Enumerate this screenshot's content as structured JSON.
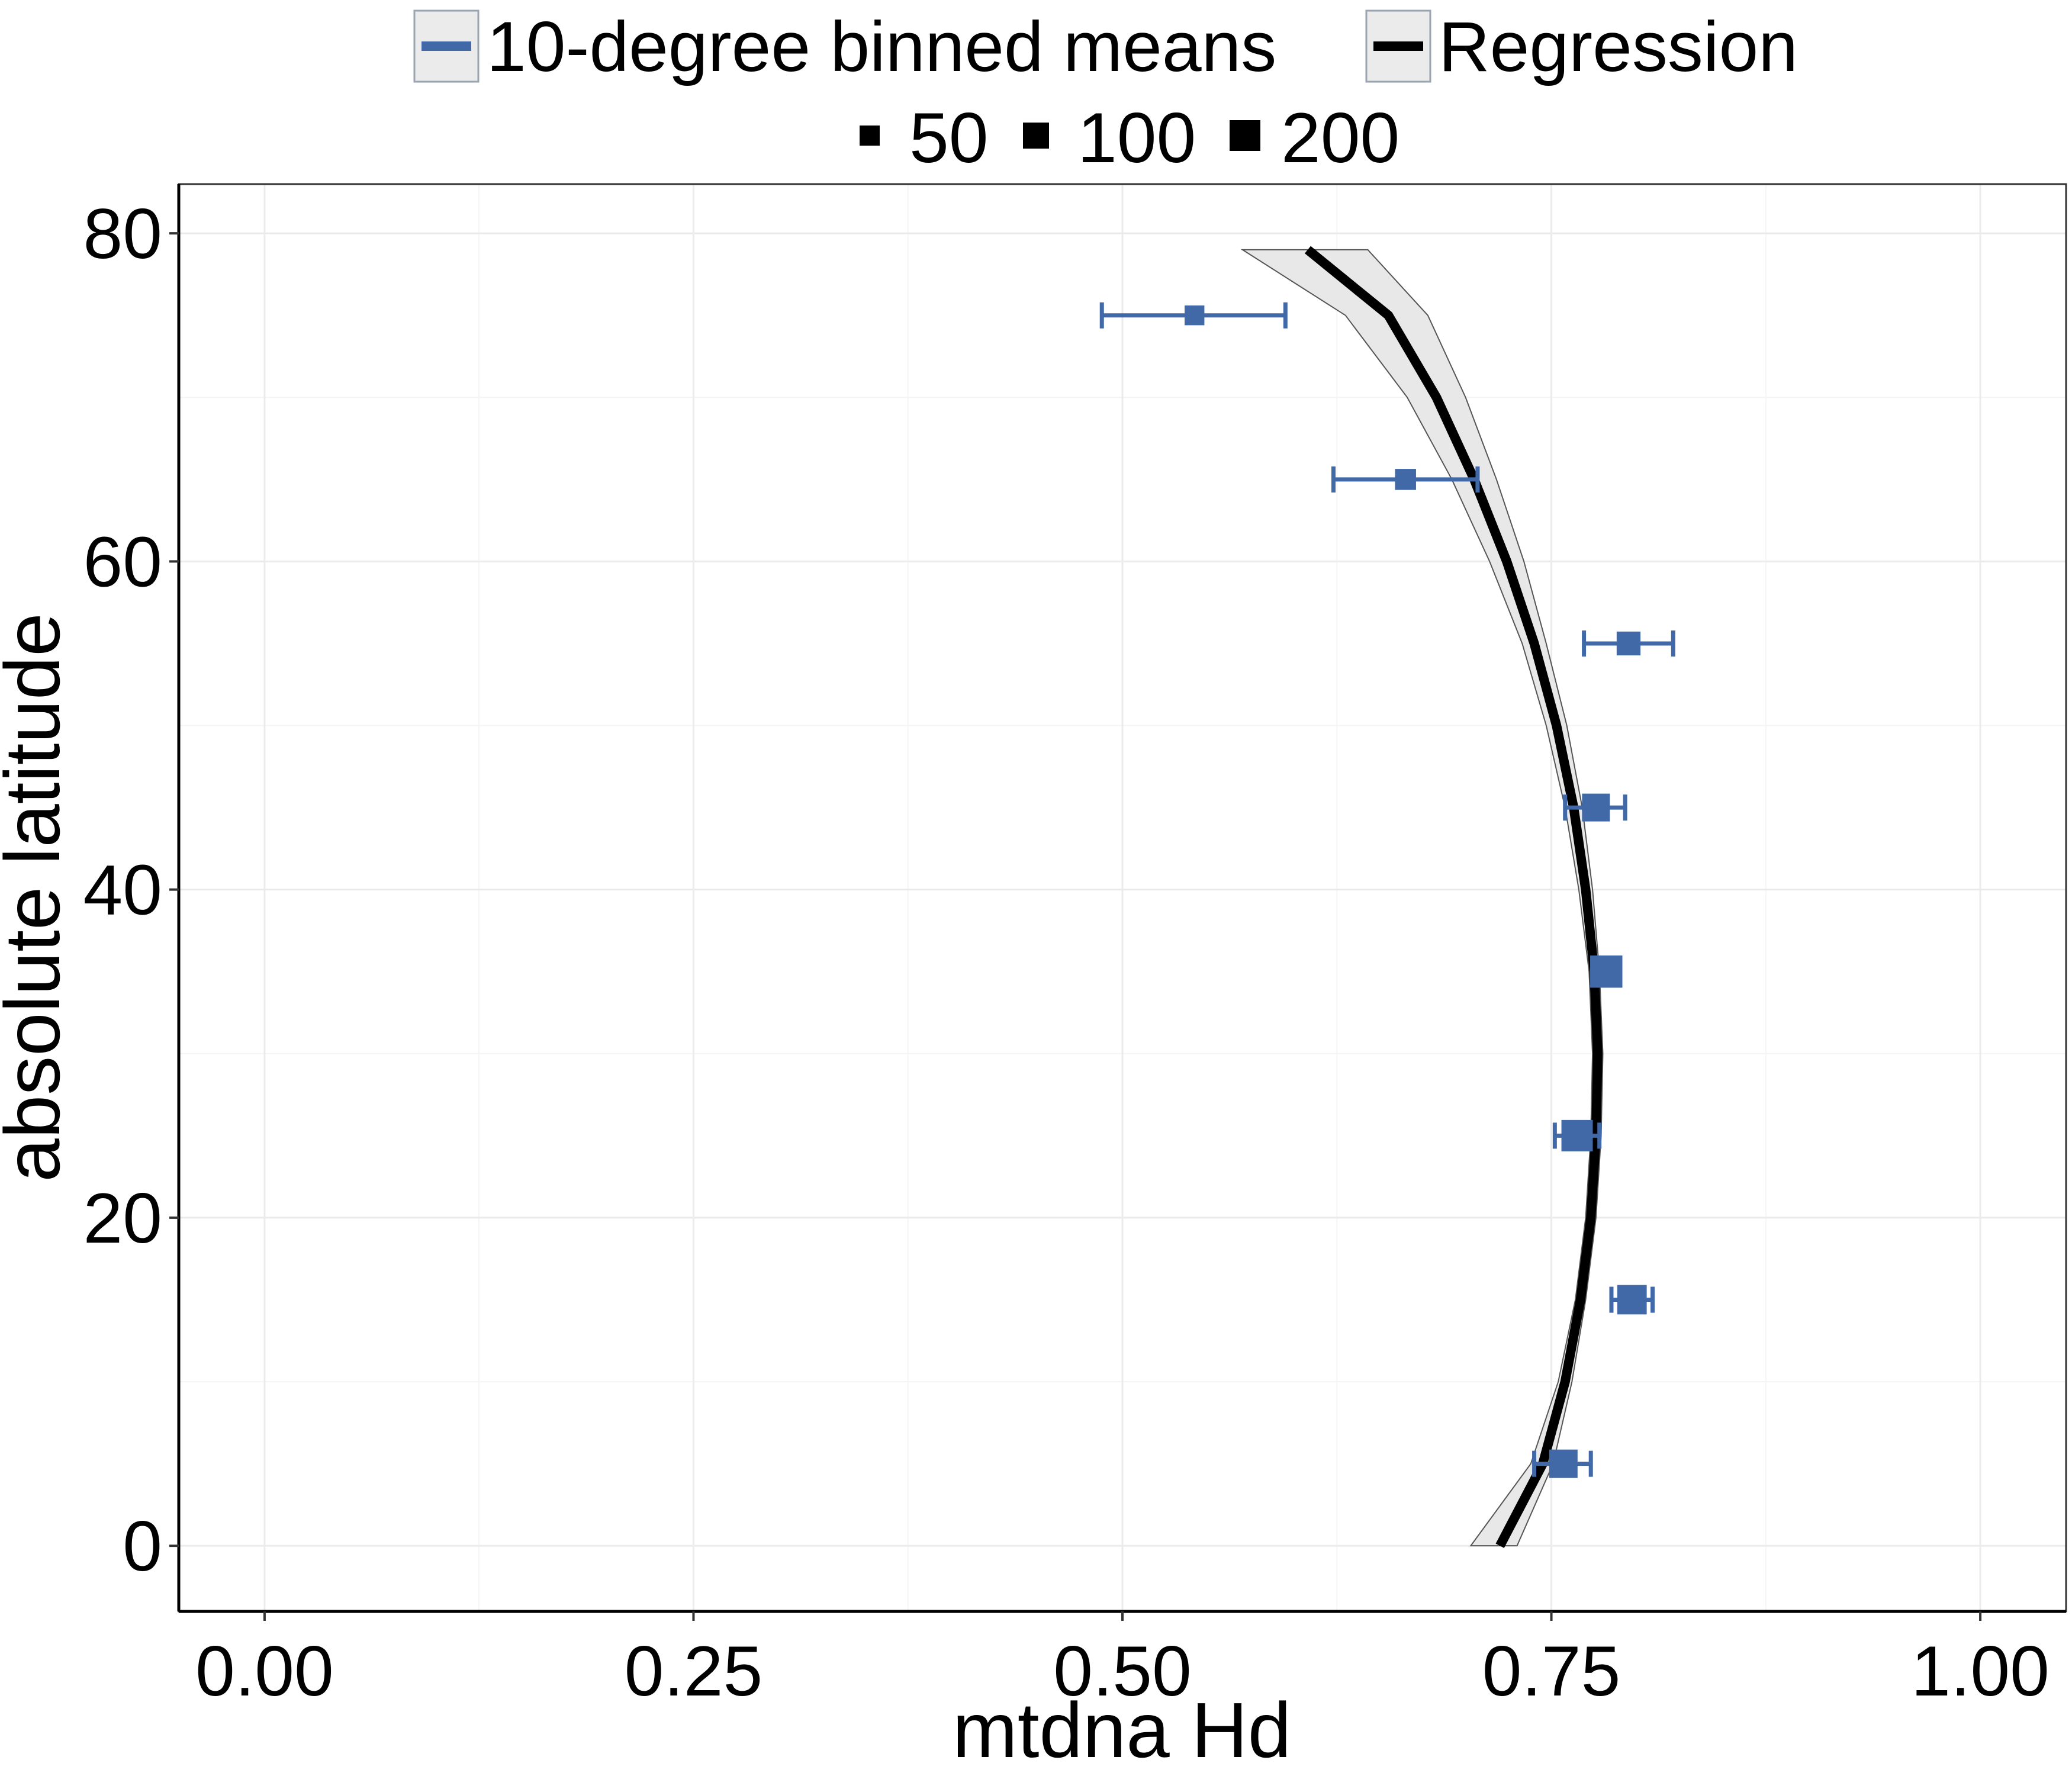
{
  "chart_data": {
    "type": "scatter",
    "xlabel": "mtdna Hd",
    "ylabel": "absolute latitude",
    "xlim": [
      -0.05,
      1.05
    ],
    "ylim": [
      -4,
      83
    ],
    "x_ticks": [
      {
        "value": 0.0,
        "label": "0.00"
      },
      {
        "value": 0.25,
        "label": "0.25"
      },
      {
        "value": 0.5,
        "label": "0.50"
      },
      {
        "value": 0.75,
        "label": "0.75"
      },
      {
        "value": 1.0,
        "label": "1.00"
      }
    ],
    "y_ticks": [
      {
        "value": 0,
        "label": "0"
      },
      {
        "value": 20,
        "label": "20"
      },
      {
        "value": 40,
        "label": "40"
      },
      {
        "value": 60,
        "label": "60"
      },
      {
        "value": 80,
        "label": "80"
      }
    ],
    "grid": true,
    "legend": {
      "placement": "top",
      "series_items": [
        {
          "label": "10-degree binned means",
          "color": "#4169a8"
        },
        {
          "label": "Regression",
          "color": "#000000"
        }
      ],
      "size_items": [
        {
          "label": "50",
          "size": 50
        },
        {
          "label": "100",
          "size": 100
        },
        {
          "label": "200",
          "size": 200
        }
      ]
    },
    "series": [
      {
        "name": "10-degree binned means",
        "color": "#4169a8",
        "points": [
          {
            "y": 5,
            "x": 0.757,
            "xmin": 0.74,
            "xmax": 0.773,
            "n": 130
          },
          {
            "y": 15,
            "x": 0.797,
            "xmin": 0.785,
            "xmax": 0.809,
            "n": 150
          },
          {
            "y": 25,
            "x": 0.765,
            "xmin": 0.752,
            "xmax": 0.778,
            "n": 190
          },
          {
            "y": 35,
            "x": 0.782,
            "xmin": 0.775,
            "xmax": 0.789,
            "n": 210
          },
          {
            "y": 45,
            "x": 0.776,
            "xmin": 0.758,
            "xmax": 0.793,
            "n": 120
          },
          {
            "y": 55,
            "x": 0.795,
            "xmin": 0.769,
            "xmax": 0.821,
            "n": 60
          },
          {
            "y": 65,
            "x": 0.665,
            "xmin": 0.623,
            "xmax": 0.707,
            "n": 30
          },
          {
            "y": 75,
            "x": 0.542,
            "xmin": 0.488,
            "xmax": 0.595,
            "n": 20
          }
        ]
      },
      {
        "name": "Regression",
        "color": "#000000",
        "line": [
          {
            "y": 0,
            "x": 0.72
          },
          {
            "y": 5,
            "x": 0.745
          },
          {
            "y": 10,
            "x": 0.758
          },
          {
            "y": 15,
            "x": 0.767
          },
          {
            "y": 20,
            "x": 0.773
          },
          {
            "y": 25,
            "x": 0.776
          },
          {
            "y": 30,
            "x": 0.777
          },
          {
            "y": 35,
            "x": 0.775
          },
          {
            "y": 40,
            "x": 0.77
          },
          {
            "y": 45,
            "x": 0.763
          },
          {
            "y": 50,
            "x": 0.753
          },
          {
            "y": 55,
            "x": 0.74
          },
          {
            "y": 60,
            "x": 0.724
          },
          {
            "y": 65,
            "x": 0.705
          },
          {
            "y": 70,
            "x": 0.683
          },
          {
            "y": 75,
            "x": 0.655
          },
          {
            "y": 79,
            "x": 0.608
          }
        ],
        "ribbon": [
          {
            "y": 0,
            "lo": 0.703,
            "hi": 0.73
          },
          {
            "y": 5,
            "lo": 0.738,
            "hi": 0.751
          },
          {
            "y": 10,
            "lo": 0.754,
            "hi": 0.762
          },
          {
            "y": 15,
            "lo": 0.764,
            "hi": 0.77
          },
          {
            "y": 20,
            "lo": 0.77,
            "hi": 0.776
          },
          {
            "y": 25,
            "lo": 0.773,
            "hi": 0.779
          },
          {
            "y": 30,
            "lo": 0.774,
            "hi": 0.78
          },
          {
            "y": 35,
            "lo": 0.772,
            "hi": 0.778
          },
          {
            "y": 40,
            "lo": 0.766,
            "hi": 0.774
          },
          {
            "y": 45,
            "lo": 0.758,
            "hi": 0.768
          },
          {
            "y": 50,
            "lo": 0.747,
            "hi": 0.759
          },
          {
            "y": 55,
            "lo": 0.733,
            "hi": 0.747
          },
          {
            "y": 60,
            "lo": 0.714,
            "hi": 0.734
          },
          {
            "y": 65,
            "lo": 0.692,
            "hi": 0.718
          },
          {
            "y": 70,
            "lo": 0.666,
            "hi": 0.7
          },
          {
            "y": 75,
            "lo": 0.63,
            "hi": 0.678
          },
          {
            "y": 79,
            "lo": 0.57,
            "hi": 0.643
          }
        ]
      }
    ]
  }
}
